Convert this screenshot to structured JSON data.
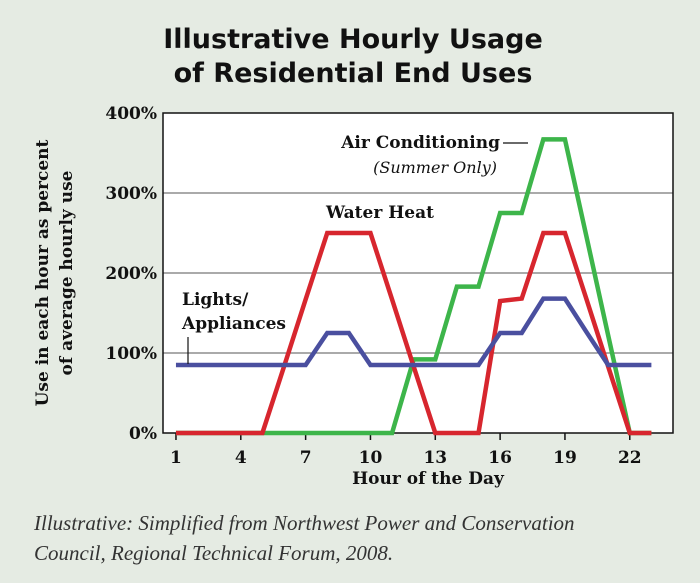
{
  "chart_data": {
    "type": "line",
    "title": [
      "Illustrative Hourly Usage",
      "of Residential End Uses"
    ],
    "xlabel": "Hour of the Day",
    "ylabel": [
      "Use in each hour as percent",
      "of average hourly use"
    ],
    "x": [
      1,
      2,
      3,
      4,
      5,
      6,
      7,
      8,
      9,
      10,
      11,
      12,
      13,
      14,
      15,
      16,
      17,
      18,
      19,
      20,
      21,
      22,
      23
    ],
    "series": [
      {
        "name": "Air Conditioning",
        "note": "(Summer Only)",
        "color": "#3db54a",
        "values": [
          0,
          0,
          0,
          0,
          0,
          0,
          0,
          0,
          0,
          0,
          0,
          92,
          92,
          183,
          183,
          275,
          275,
          367,
          367,
          245,
          122,
          0,
          0
        ]
      },
      {
        "name": "Water Heat",
        "color": "#d7262e",
        "values": [
          0,
          0,
          0,
          0,
          0,
          83,
          167,
          250,
          250,
          250,
          167,
          83,
          0,
          0,
          0,
          165,
          168,
          250,
          250,
          167,
          83,
          0,
          0
        ]
      },
      {
        "name": "Lights/ Appliances",
        "color": "#4a4f9f",
        "values": [
          85,
          85,
          85,
          85,
          85,
          85,
          85,
          125,
          125,
          85,
          85,
          85,
          85,
          85,
          85,
          125,
          125,
          168,
          168,
          126,
          85,
          85,
          85
        ]
      }
    ],
    "xlim": [
      0.4,
      24
    ],
    "xticks": [
      1,
      4,
      7,
      10,
      13,
      16,
      19,
      22
    ],
    "ylim": [
      0,
      400
    ],
    "yticks": [
      {
        "value": 0,
        "label": "0%"
      },
      {
        "value": 100,
        "label": "100%"
      },
      {
        "value": 200,
        "label": "200%"
      },
      {
        "value": 300,
        "label": "300%"
      },
      {
        "value": 400,
        "label": "400%"
      }
    ],
    "grid": true,
    "source": [
      "Illustrative: Simplified from Northwest Power and Conservation",
      "Council, Regional Technical Forum, 2008."
    ]
  }
}
